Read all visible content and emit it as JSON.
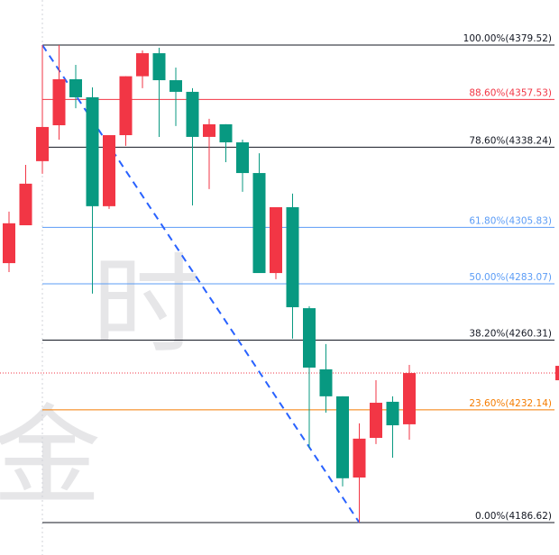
{
  "chart_data": {
    "type": "candlestick",
    "ylim": [
      4173.5,
      4397.7
    ],
    "up_color": "#f23645",
    "down_color": "#089981",
    "open": [
      4291.4,
      4306.7,
      4332.6,
      4347.1,
      4365.7,
      4358.4,
      4314.4,
      4343.1,
      4366.9,
      4376.2,
      4365.3,
      4360.6,
      4342.4,
      4347.5,
      4340.2,
      4327.8,
      4287.4,
      4314.0,
      4273.2,
      4248.5,
      4237.6,
      4204.8,
      4220.8,
      4235.4,
      4226.3
    ],
    "high": [
      4312.2,
      4331.1,
      4379.5,
      4379.5,
      4371.5,
      4362.4,
      4343.1,
      4366.9,
      4377.3,
      4378.4,
      4370.4,
      4362.1,
      4349.7,
      4347.5,
      4341.3,
      4335.8,
      4314.0,
      4319.5,
      4274.0,
      4258.7,
      4237.6,
      4226.7,
      4244.1,
      4237.6,
      4250.3
    ],
    "low": [
      4287.8,
      4306.7,
      4327.5,
      4341.3,
      4354.0,
      4279.1,
      4313.3,
      4338.8,
      4362.1,
      4342.4,
      4346.8,
      4314.7,
      4321.3,
      4332.2,
      4320.2,
      4287.4,
      4284.9,
      4260.9,
      4216.8,
      4231.0,
      4201.2,
      4186.6,
      4218.3,
      4212.8,
      4220.1
    ],
    "close": [
      4307.5,
      4323.5,
      4346.4,
      4365.7,
      4358.4,
      4314.4,
      4343.1,
      4366.9,
      4376.2,
      4365.3,
      4360.6,
      4342.4,
      4347.5,
      4340.2,
      4327.8,
      4287.4,
      4314.0,
      4273.6,
      4249.2,
      4237.6,
      4204.5,
      4220.5,
      4235.0,
      4225.9,
      4247.0
    ],
    "fib_levels": [
      {
        "value": 4379.52,
        "label": "100.00%(4379.52)",
        "color": "#131722"
      },
      {
        "value": 4357.53,
        "label": "88.60%(4357.53)",
        "color": "#f23645"
      },
      {
        "value": 4338.24,
        "label": "78.60%(4338.24)",
        "color": "#131722"
      },
      {
        "value": 4305.83,
        "label": "61.80%(4305.83)",
        "color": "#5b9cf6"
      },
      {
        "value": 4283.07,
        "label": "50.00%(4283.07)",
        "color": "#5b9cf6"
      },
      {
        "value": 4260.31,
        "label": "38.20%(4260.31)",
        "color": "#131722"
      },
      {
        "value": 4232.14,
        "label": "23.60%(4232.14)",
        "color": "#f57c00"
      },
      {
        "value": 4186.62,
        "label": "0.00%(4186.62)",
        "color": "#131722"
      }
    ],
    "current_price": 4247.0,
    "watermark": [
      "时",
      "金"
    ]
  }
}
